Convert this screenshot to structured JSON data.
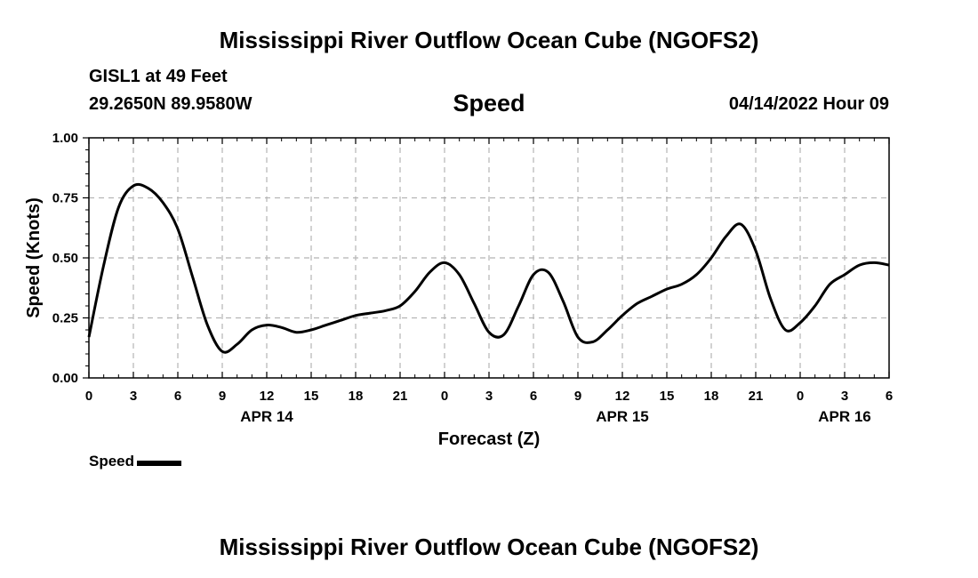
{
  "header": {
    "title": "Mississippi River Outflow Ocean Cube (NGOFS2)",
    "station": "GISL1 at 49 Feet",
    "coords": "29.2650N  89.9580W",
    "datetime": "04/14/2022 Hour 09"
  },
  "footer": {
    "title": "Mississippi River Outflow Ocean Cube (NGOFS2)"
  },
  "legend": {
    "label": "Speed"
  },
  "chart_data": {
    "type": "line",
    "title": "Speed",
    "xlabel": "Forecast (Z)",
    "ylabel": "Speed (Knots)",
    "xlim": [
      0,
      54
    ],
    "ylim": [
      0,
      1.0
    ],
    "grid": true,
    "x_ticks": [
      0,
      3,
      6,
      9,
      12,
      15,
      18,
      21,
      24,
      27,
      30,
      33,
      36,
      39,
      42,
      45,
      48,
      51,
      54
    ],
    "x_tick_labels": [
      "0",
      "3",
      "6",
      "9",
      "12",
      "15",
      "18",
      "21",
      "0",
      "3",
      "6",
      "9",
      "12",
      "15",
      "18",
      "21",
      "0",
      "3",
      "6"
    ],
    "y_ticks": [
      0,
      0.25,
      0.5,
      0.75,
      1.0
    ],
    "y_tick_labels": [
      "0.00",
      "0.25",
      "0.50",
      "0.75",
      "1.00"
    ],
    "date_labels": [
      {
        "x": 12,
        "label": "APR 14"
      },
      {
        "x": 36,
        "label": "APR 15"
      },
      {
        "x": 51,
        "label": "APR 16"
      }
    ],
    "series": [
      {
        "name": "Speed",
        "color": "#000000",
        "x": [
          0,
          1,
          2,
          3,
          4,
          5,
          6,
          7,
          8,
          9,
          10,
          11,
          12,
          13,
          14,
          15,
          16,
          17,
          18,
          19,
          20,
          21,
          22,
          23,
          24,
          25,
          26,
          27,
          28,
          29,
          30,
          31,
          32,
          33,
          34,
          35,
          36,
          37,
          38,
          39,
          40,
          41,
          42,
          43,
          44,
          45,
          46,
          47,
          48,
          49,
          50,
          51,
          52,
          53,
          54
        ],
        "values": [
          0.17,
          0.47,
          0.71,
          0.8,
          0.79,
          0.73,
          0.62,
          0.42,
          0.22,
          0.11,
          0.14,
          0.2,
          0.22,
          0.21,
          0.19,
          0.2,
          0.22,
          0.24,
          0.26,
          0.27,
          0.28,
          0.3,
          0.36,
          0.44,
          0.48,
          0.43,
          0.31,
          0.19,
          0.18,
          0.3,
          0.43,
          0.44,
          0.32,
          0.17,
          0.15,
          0.2,
          0.26,
          0.31,
          0.34,
          0.37,
          0.39,
          0.43,
          0.5,
          0.59,
          0.64,
          0.53,
          0.33,
          0.2,
          0.23,
          0.3,
          0.39,
          0.43,
          0.47,
          0.48,
          0.47
        ]
      }
    ]
  }
}
